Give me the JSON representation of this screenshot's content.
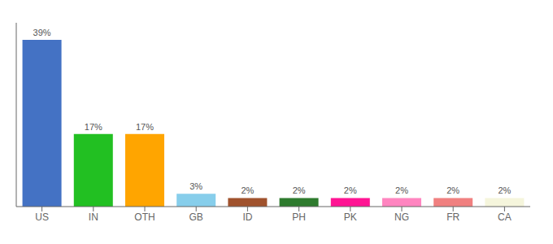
{
  "chart_data": {
    "type": "bar",
    "categories": [
      "US",
      "IN",
      "OTH",
      "GB",
      "ID",
      "PH",
      "PK",
      "NG",
      "FR",
      "CA"
    ],
    "values": [
      39,
      17,
      17,
      3,
      2,
      2,
      2,
      2,
      2,
      2
    ],
    "value_labels": [
      "39%",
      "17%",
      "17%",
      "3%",
      "2%",
      "2%",
      "2%",
      "2%",
      "2%",
      "2%"
    ],
    "colors": [
      "#4472C4",
      "#22C022",
      "#FFA500",
      "#87CEEB",
      "#A0522D",
      "#2E7B2E",
      "#FF1493",
      "#FF85C0",
      "#F08080",
      "#F5F5DC"
    ],
    "ylim": [
      0,
      43
    ],
    "data_labels": true,
    "tick_labels": "x",
    "grid": false
  }
}
